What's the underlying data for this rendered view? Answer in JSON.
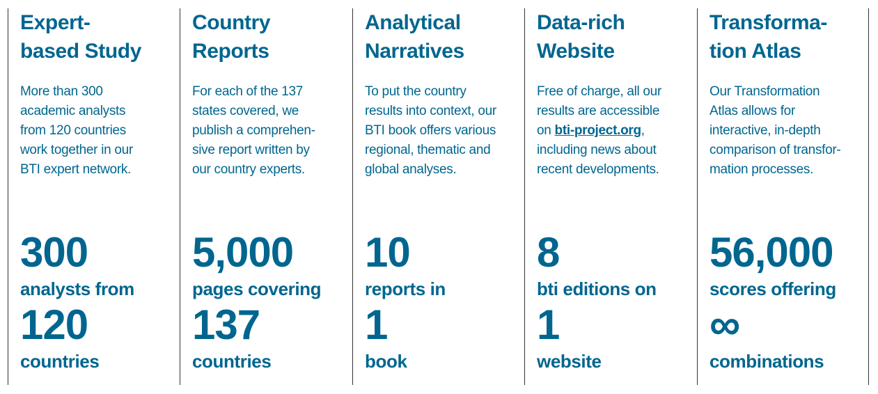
{
  "columns": [
    {
      "heading": "Expert-\nbased Study",
      "desc_pre": "More than 300\nacademic analysts\nfrom 120 countries\nwork together in our\nBTI expert network.",
      "desc_link": "",
      "desc_post": "",
      "n1": "300",
      "t1": "analysts from",
      "n2": "120",
      "t2": "countries"
    },
    {
      "heading": "Country\nReports",
      "desc_pre": "For each of the 137\nstates covered, we\npublish a comprehen-\nsive report written by\nour country experts.",
      "desc_link": "",
      "desc_post": "",
      "n1": "5,000",
      "t1": "pages covering",
      "n2": "137",
      "t2": "countries"
    },
    {
      "heading": "Analytical\nNarratives",
      "desc_pre": "To put the country\nresults into context, our\nBTI book offers various\nregional, thematic and\nglobal analyses.",
      "desc_link": "",
      "desc_post": "",
      "n1": "10",
      "t1": "reports in",
      "n2": "1",
      "t2": "book"
    },
    {
      "heading": "Data-rich\nWebsite",
      "desc_pre": "Free of charge, all our\nresults are accessible\non ",
      "desc_link": "bti-project.org",
      "desc_post": ",\nincluding news about\nrecent developments.",
      "n1": "8",
      "t1": "bti editions on",
      "n2": "1",
      "t2": "website"
    },
    {
      "heading": "Transforma-\ntion Atlas",
      "desc_pre": "Our Transformation\nAtlas allows for\ninteractive, in-depth\ncomparison of transfor-\nmation processes.",
      "desc_link": "",
      "desc_post": "",
      "n1": "56,000",
      "t1": "scores offering",
      "n2": "∞",
      "t2": "combinations"
    }
  ],
  "colors": {
    "accent": "#00668f",
    "divider": "#333333"
  }
}
